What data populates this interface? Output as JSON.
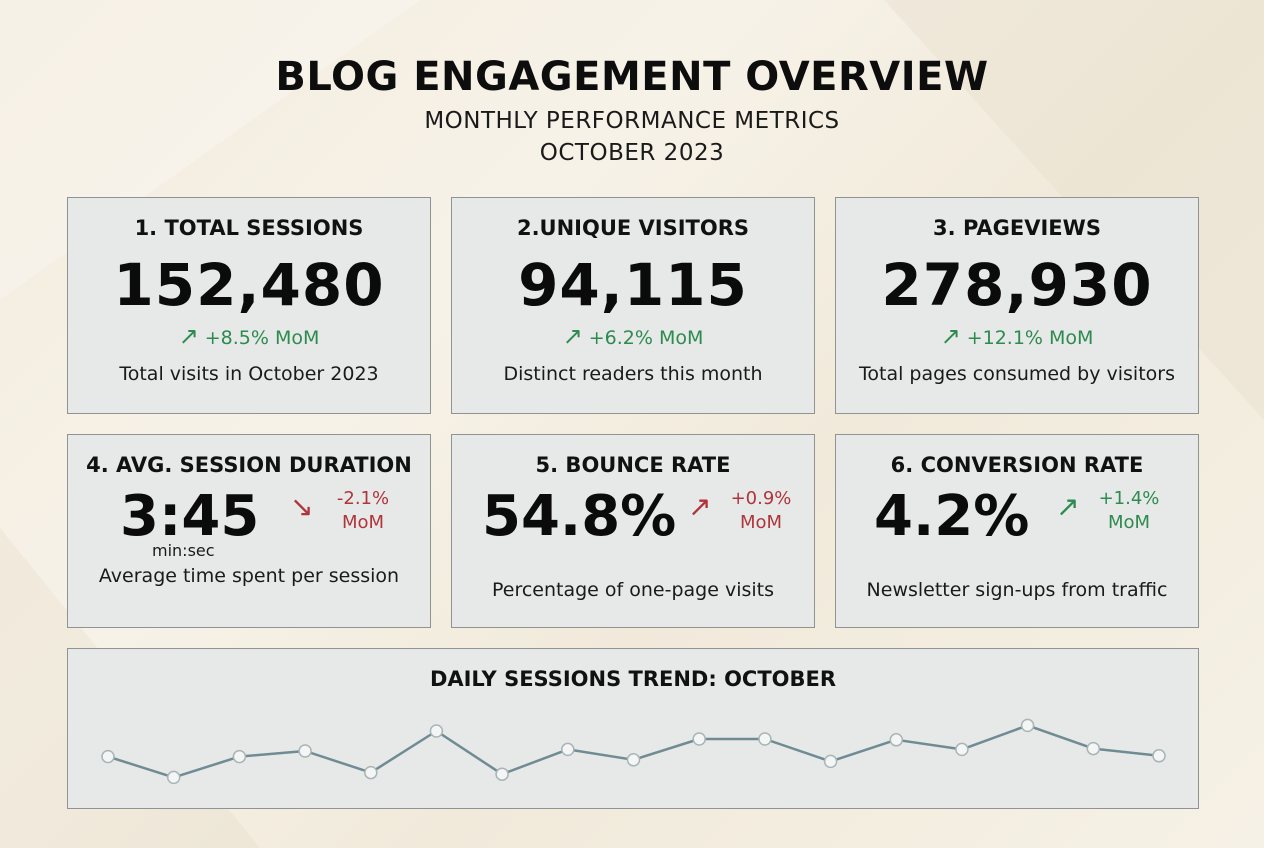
{
  "header": {
    "title": "BLOG ENGAGEMENT OVERVIEW",
    "subtitle": "MONTHLY PERFORMANCE METRICS",
    "period": "OCTOBER 2023"
  },
  "colors": {
    "positive": "#2e8a4e",
    "negative": "#b0353a",
    "card_bg": "#e6e9e8",
    "card_border": "#8f9493",
    "line": "#6f8b93",
    "point_fill": "#f4f6f5"
  },
  "cards": [
    {
      "label": "1. TOTAL SESSIONS",
      "value": "152,480",
      "change_icon": "arrow-up-right-icon",
      "change": "+8.5% MoM",
      "desc": "Total visits in October 2023"
    },
    {
      "label": "2.UNIQUE VISITORS",
      "value": "94,115",
      "change_icon": "arrow-up-right-icon",
      "change": "+6.2% MoM",
      "desc": "Distinct readers this month"
    },
    {
      "label": "3. PAGEVIEWS",
      "value": "278,930",
      "change_icon": "arrow-up-right-icon",
      "change": "+12.1% MoM",
      "desc": "Total pages consumed by visitors"
    },
    {
      "label": "4. AVG. SESSION DURATION",
      "value": "3:45",
      "unit": "min:sec",
      "change_icon": "arrow-down-right-icon",
      "change_line1": "-2.1%",
      "change_line2": "MoM",
      "desc": "Average time spent per session"
    },
    {
      "label": "5. BOUNCE RATE",
      "value": "54.8%",
      "change_icon": "arrow-up-right-icon",
      "change_line1": "+0.9%",
      "change_line2": "MoM",
      "desc": "Percentage of one-page visits"
    },
    {
      "label": "6. CONVERSION RATE",
      "value": "4.2%",
      "change_icon": "arrow-up-right-icon",
      "change_line1": "+1.4%",
      "change_line2": "MoM",
      "desc": "Newsletter sign-ups from traffic"
    }
  ],
  "trend": {
    "title": "DAILY SESSIONS TREND: OCTOBER"
  },
  "chart_data": {
    "type": "line",
    "title": "DAILY SESSIONS TREND: OCTOBER",
    "xlabel": "",
    "ylabel": "",
    "grid": false,
    "series": [
      {
        "values": [
          0.38,
          0.12,
          0.38,
          0.45,
          0.18,
          0.7,
          0.16,
          0.47,
          0.34,
          0.6,
          0.6,
          0.32,
          0.59,
          0.47,
          0.77,
          0.48,
          0.39
        ]
      }
    ],
    "ylim": [
      0,
      1
    ]
  }
}
